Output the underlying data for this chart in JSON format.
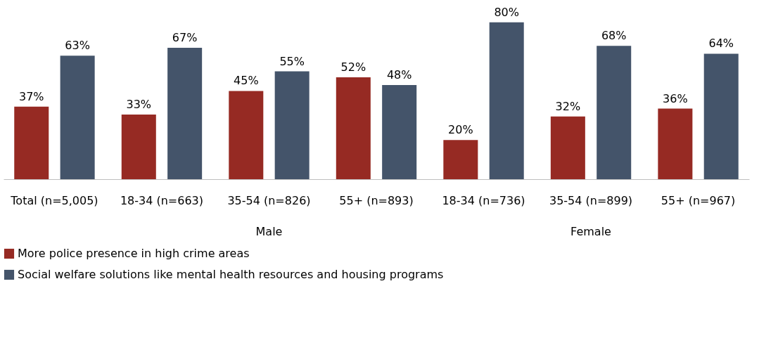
{
  "chart_data": {
    "type": "bar",
    "categories": [
      "Total (n=5,005)",
      "18-34 (n=663)",
      "35-54 (n=826)",
      "55+ (n=893)",
      "18-34 (n=736)",
      "35-54 (n=899)",
      "55+ (n=967)"
    ],
    "series": [
      {
        "name": "More police presence in high crime areas",
        "color": "#962a23",
        "values": [
          37,
          33,
          45,
          52,
          20,
          32,
          36
        ],
        "value_labels": [
          "37%",
          "33%",
          "45%",
          "52%",
          "20%",
          "32%",
          "36%"
        ]
      },
      {
        "name": "Social welfare solutions like mental health resources and housing programs",
        "color": "#44546a",
        "values": [
          63,
          67,
          55,
          48,
          80,
          68,
          64
        ],
        "value_labels": [
          "63%",
          "67%",
          "55%",
          "48%",
          "80%",
          "68%",
          "64%"
        ]
      }
    ],
    "legend": "bottom",
    "grid": false,
    "annotations": [
      "Male",
      "Female"
    ]
  }
}
